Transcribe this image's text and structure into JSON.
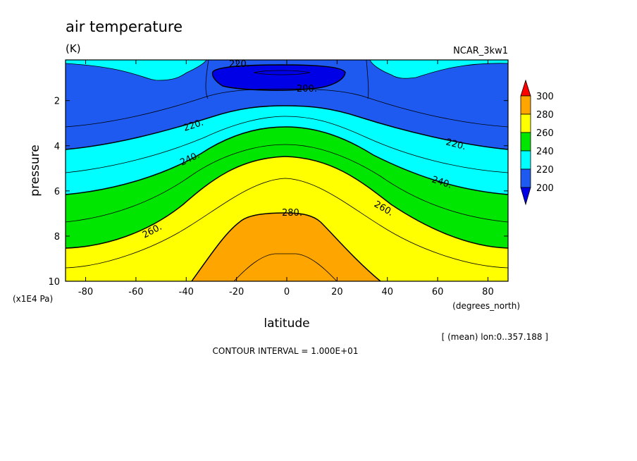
{
  "chart_data": {
    "type": "heatmap",
    "title": "air temperature",
    "units": "(K)",
    "model": "NCAR_3kw1",
    "xlabel": "latitude",
    "x_units": "(degrees_north)",
    "ylabel": "pressure",
    "y_units": "(x1E4 Pa)",
    "xlim": [
      -88,
      88
    ],
    "ylim": [
      10,
      0.2
    ],
    "x_ticks": [
      "-80",
      "-60",
      "-40",
      "-20",
      "0",
      "20",
      "40",
      "60",
      "80"
    ],
    "y_ticks": [
      "2",
      "4",
      "6",
      "8",
      "10"
    ],
    "average_note": "[ (mean) lon:0..357.188 ]",
    "contour_interval": "CONTOUR INTERVAL = 1.000E+01",
    "colorbar": {
      "labels": [
        "300",
        "280",
        "260",
        "240",
        "220",
        "200"
      ],
      "levels": [
        200,
        220,
        240,
        260,
        280,
        300
      ],
      "colors": [
        "#1e5af0",
        "#00ffff",
        "#00e600",
        "#ffff00",
        "#ffa500",
        "#ff0000"
      ],
      "below_color": "#0000e6"
    },
    "contour_labels": [
      "220.",
      "200.",
      "220.",
      "220.",
      "240.",
      "240.",
      "260.",
      "260.",
      "280."
    ]
  }
}
